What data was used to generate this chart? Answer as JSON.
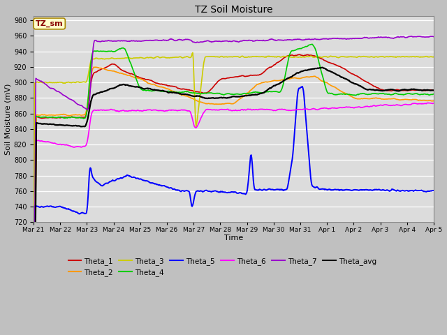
{
  "title": "TZ Soil Moisture",
  "ylabel": "Soil Moisture (mV)",
  "xlabel": "Time",
  "ylim": [
    720,
    985
  ],
  "fig_bg": "#c8c8c8",
  "plot_bg": "#dcdcdc",
  "legend_label": "TZ_sm",
  "series_colors": {
    "Theta_1": "#cc0000",
    "Theta_2": "#ff9900",
    "Theta_3": "#cccc00",
    "Theta_4": "#00cc00",
    "Theta_5": "#0000ff",
    "Theta_6": "#ff00ff",
    "Theta_7": "#9900cc",
    "Theta_avg": "#000000"
  },
  "xtick_labels": [
    "Mar 21",
    "Mar 22",
    "Mar 23",
    "Mar 24",
    "Mar 25",
    "Mar 26",
    "Mar 27",
    "Mar 28",
    "Mar 29",
    "Mar 30",
    "Mar 31",
    "Apr 1",
    "Apr 2",
    "Apr 3",
    "Apr 4",
    "Apr 5"
  ]
}
